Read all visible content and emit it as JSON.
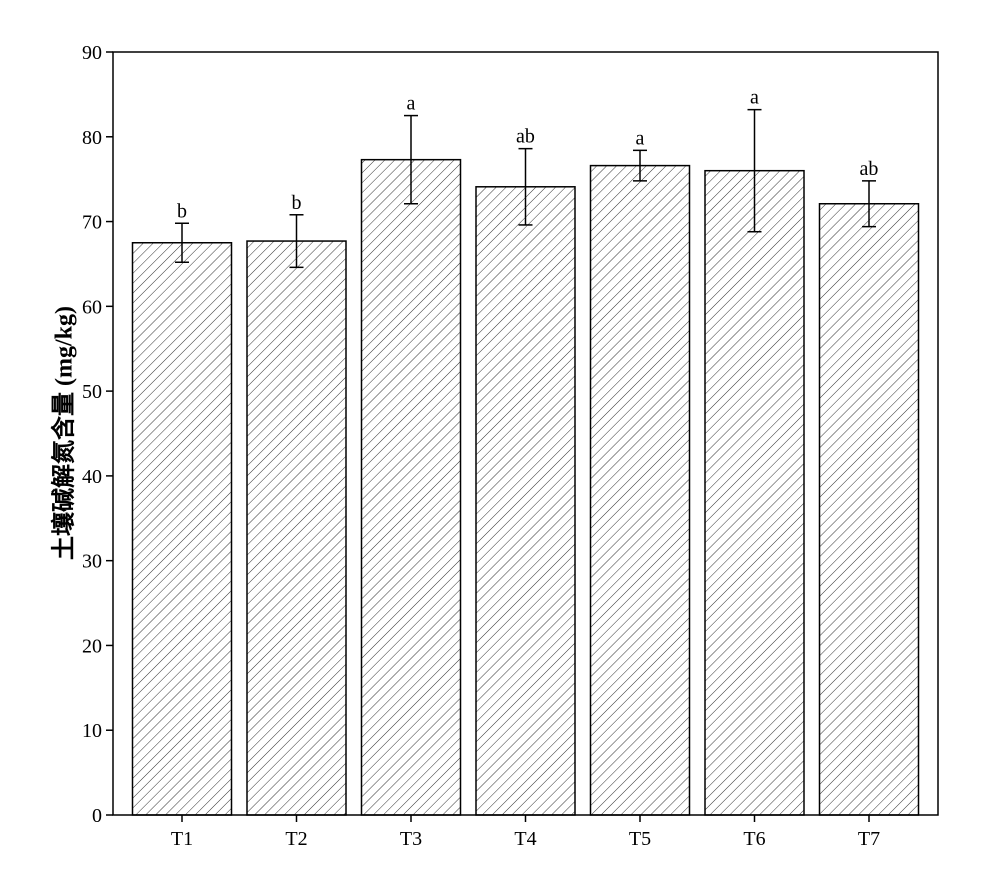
{
  "chart_data": {
    "type": "bar",
    "y_label": "土壤碱解氮含量 (mg/kg)",
    "categories": [
      "T1",
      "T2",
      "T3",
      "T4",
      "T5",
      "T6",
      "T7"
    ],
    "values": [
      67.5,
      67.7,
      77.3,
      74.1,
      76.6,
      76.0,
      72.1
    ],
    "errors": [
      2.3,
      3.1,
      5.2,
      4.5,
      1.8,
      7.2,
      2.7
    ],
    "letters": [
      "b",
      "b",
      "a",
      "ab",
      "a",
      "a",
      "ab"
    ],
    "color": "#000000",
    "ylim": [
      0,
      90
    ],
    "yticks": [
      0,
      10,
      20,
      30,
      40,
      50,
      60,
      70,
      80,
      90
    ],
    "grid": false
  }
}
